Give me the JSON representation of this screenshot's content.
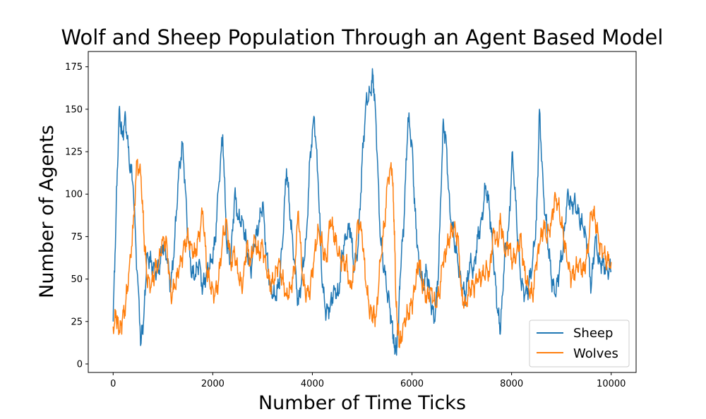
{
  "chart_data": {
    "type": "line",
    "title": "Wolf and Sheep Population Through an Agent Based Model",
    "xlabel": "Number of Time Ticks",
    "ylabel": "Number of Agents",
    "xlim": [
      -500,
      10500
    ],
    "ylim": [
      -5,
      184
    ],
    "xticks": [
      0,
      2000,
      4000,
      6000,
      8000,
      10000
    ],
    "yticks": [
      0,
      25,
      50,
      75,
      100,
      125,
      150,
      175
    ],
    "grid": false,
    "legend_position": "lower-right",
    "x": [
      0,
      60,
      120,
      180,
      250,
      320,
      400,
      480,
      560,
      620,
      680,
      760,
      840,
      920,
      1000,
      1080,
      1160,
      1240,
      1320,
      1400,
      1480,
      1560,
      1640,
      1720,
      1800,
      1880,
      1960,
      2040,
      2120,
      2200,
      2280,
      2360,
      2440,
      2520,
      2600,
      2680,
      2760,
      2840,
      2920,
      3000,
      3080,
      3160,
      3240,
      3320,
      3400,
      3480,
      3560,
      3640,
      3720,
      3800,
      3880,
      3960,
      4040,
      4120,
      4200,
      4280,
      4360,
      4440,
      4520,
      4600,
      4680,
      4760,
      4840,
      4920,
      5000,
      5080,
      5160,
      5220,
      5280,
      5360,
      5440,
      5520,
      5600,
      5640,
      5680,
      5720,
      5760,
      5840,
      5920,
      6000,
      6060,
      6140,
      6220,
      6300,
      6380,
      6460,
      6540,
      6620,
      6680,
      6760,
      6840,
      6920,
      7000,
      7080,
      7160,
      7240,
      7320,
      7400,
      7480,
      7560,
      7640,
      7720,
      7780,
      7860,
      7940,
      8020,
      8100,
      8180,
      8260,
      8340,
      8420,
      8500,
      8560,
      8640,
      8720,
      8800,
      8880,
      8960,
      9040,
      9120,
      9200,
      9280,
      9360,
      9440,
      9520,
      9600,
      9680,
      9760,
      9840,
      9920,
      10000
    ],
    "series": [
      {
        "name": "Sheep",
        "color": "#1f77b4",
        "values": [
          25,
          90,
          150,
          135,
          145,
          120,
          105,
          55,
          12,
          30,
          65,
          60,
          55,
          55,
          70,
          62,
          45,
          75,
          115,
          130,
          85,
          55,
          50,
          60,
          45,
          55,
          60,
          70,
          105,
          135,
          70,
          60,
          100,
          85,
          85,
          70,
          55,
          70,
          80,
          95,
          65,
          45,
          40,
          45,
          70,
          115,
          85,
          60,
          35,
          55,
          75,
          125,
          145,
          105,
          45,
          30,
          35,
          45,
          40,
          65,
          75,
          80,
          55,
          70,
          120,
          155,
          160,
          170,
          140,
          75,
          55,
          40,
          25,
          12,
          8,
          18,
          50,
          85,
          145,
          130,
          90,
          60,
          45,
          55,
          35,
          25,
          60,
          140,
          135,
          90,
          75,
          60,
          45,
          40,
          60,
          55,
          75,
          85,
          105,
          90,
          60,
          30,
          20,
          65,
          80,
          125,
          85,
          50,
          40,
          45,
          60,
          85,
          150,
          100,
          75,
          50,
          40,
          55,
          70,
          100,
          95,
          95,
          85,
          80,
          70,
          45,
          75,
          60,
          60,
          55,
          55
        ]
      },
      {
        "name": "Wolves",
        "color": "#ff7f0e",
        "values": [
          22,
          28,
          18,
          25,
          35,
          55,
          80,
          120,
          110,
          75,
          50,
          45,
          55,
          60,
          75,
          70,
          40,
          45,
          55,
          65,
          75,
          70,
          65,
          75,
          90,
          55,
          45,
          40,
          50,
          75,
          85,
          60,
          65,
          50,
          45,
          70,
          60,
          75,
          65,
          70,
          55,
          45,
          50,
          60,
          50,
          40,
          45,
          55,
          90,
          50,
          40,
          45,
          65,
          80,
          70,
          60,
          85,
          75,
          65,
          60,
          60,
          45,
          55,
          85,
          75,
          45,
          30,
          30,
          28,
          60,
          80,
          110,
          115,
          85,
          35,
          20,
          12,
          25,
          30,
          35,
          45,
          60,
          45,
          40,
          45,
          35,
          40,
          60,
          65,
          75,
          80,
          75,
          40,
          35,
          45,
          45,
          50,
          50,
          55,
          55,
          80,
          70,
          85,
          65,
          70,
          60,
          65,
          75,
          55,
          45,
          40,
          60,
          70,
          80,
          75,
          85,
          100,
          90,
          75,
          60,
          50,
          55,
          60,
          55,
          65,
          90,
          85,
          70,
          65,
          60,
          60
        ]
      }
    ]
  }
}
